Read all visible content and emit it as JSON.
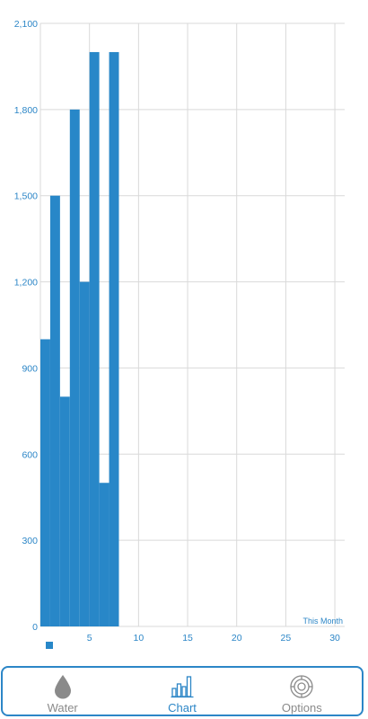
{
  "chart_data": {
    "type": "bar",
    "x": [
      1,
      2,
      3,
      4,
      5,
      6,
      7,
      8
    ],
    "values": [
      1000,
      1500,
      800,
      1800,
      1200,
      2000,
      500,
      2000
    ],
    "ylim": [
      0,
      2100
    ],
    "xlim": [
      0,
      31
    ],
    "y_ticks": [
      0,
      300,
      600,
      900,
      1200,
      1500,
      1800,
      2100
    ],
    "y_tick_labels": [
      "0",
      "300",
      "600",
      "900",
      "1,200",
      "1,500",
      "1,800",
      "2,100"
    ],
    "x_ticks": [
      5,
      10,
      15,
      20,
      25,
      30
    ],
    "x_tick_labels": [
      "5",
      "10",
      "15",
      "20",
      "25",
      "30"
    ],
    "description": "This Month",
    "grid": true,
    "bar_color": "#2887c8",
    "legend_position": "bottom-left"
  },
  "colors": {
    "accent": "#2c86c7",
    "bar": "#2887c8",
    "grid": "#d9d9d9",
    "inactive": "#8a8a8a"
  },
  "nav": {
    "items": [
      {
        "label": "Water",
        "icon": "water-drop-icon",
        "active": false
      },
      {
        "label": "Chart",
        "icon": "bar-chart-icon",
        "active": true
      },
      {
        "label": "Options",
        "icon": "gear-icon",
        "active": false
      }
    ]
  }
}
